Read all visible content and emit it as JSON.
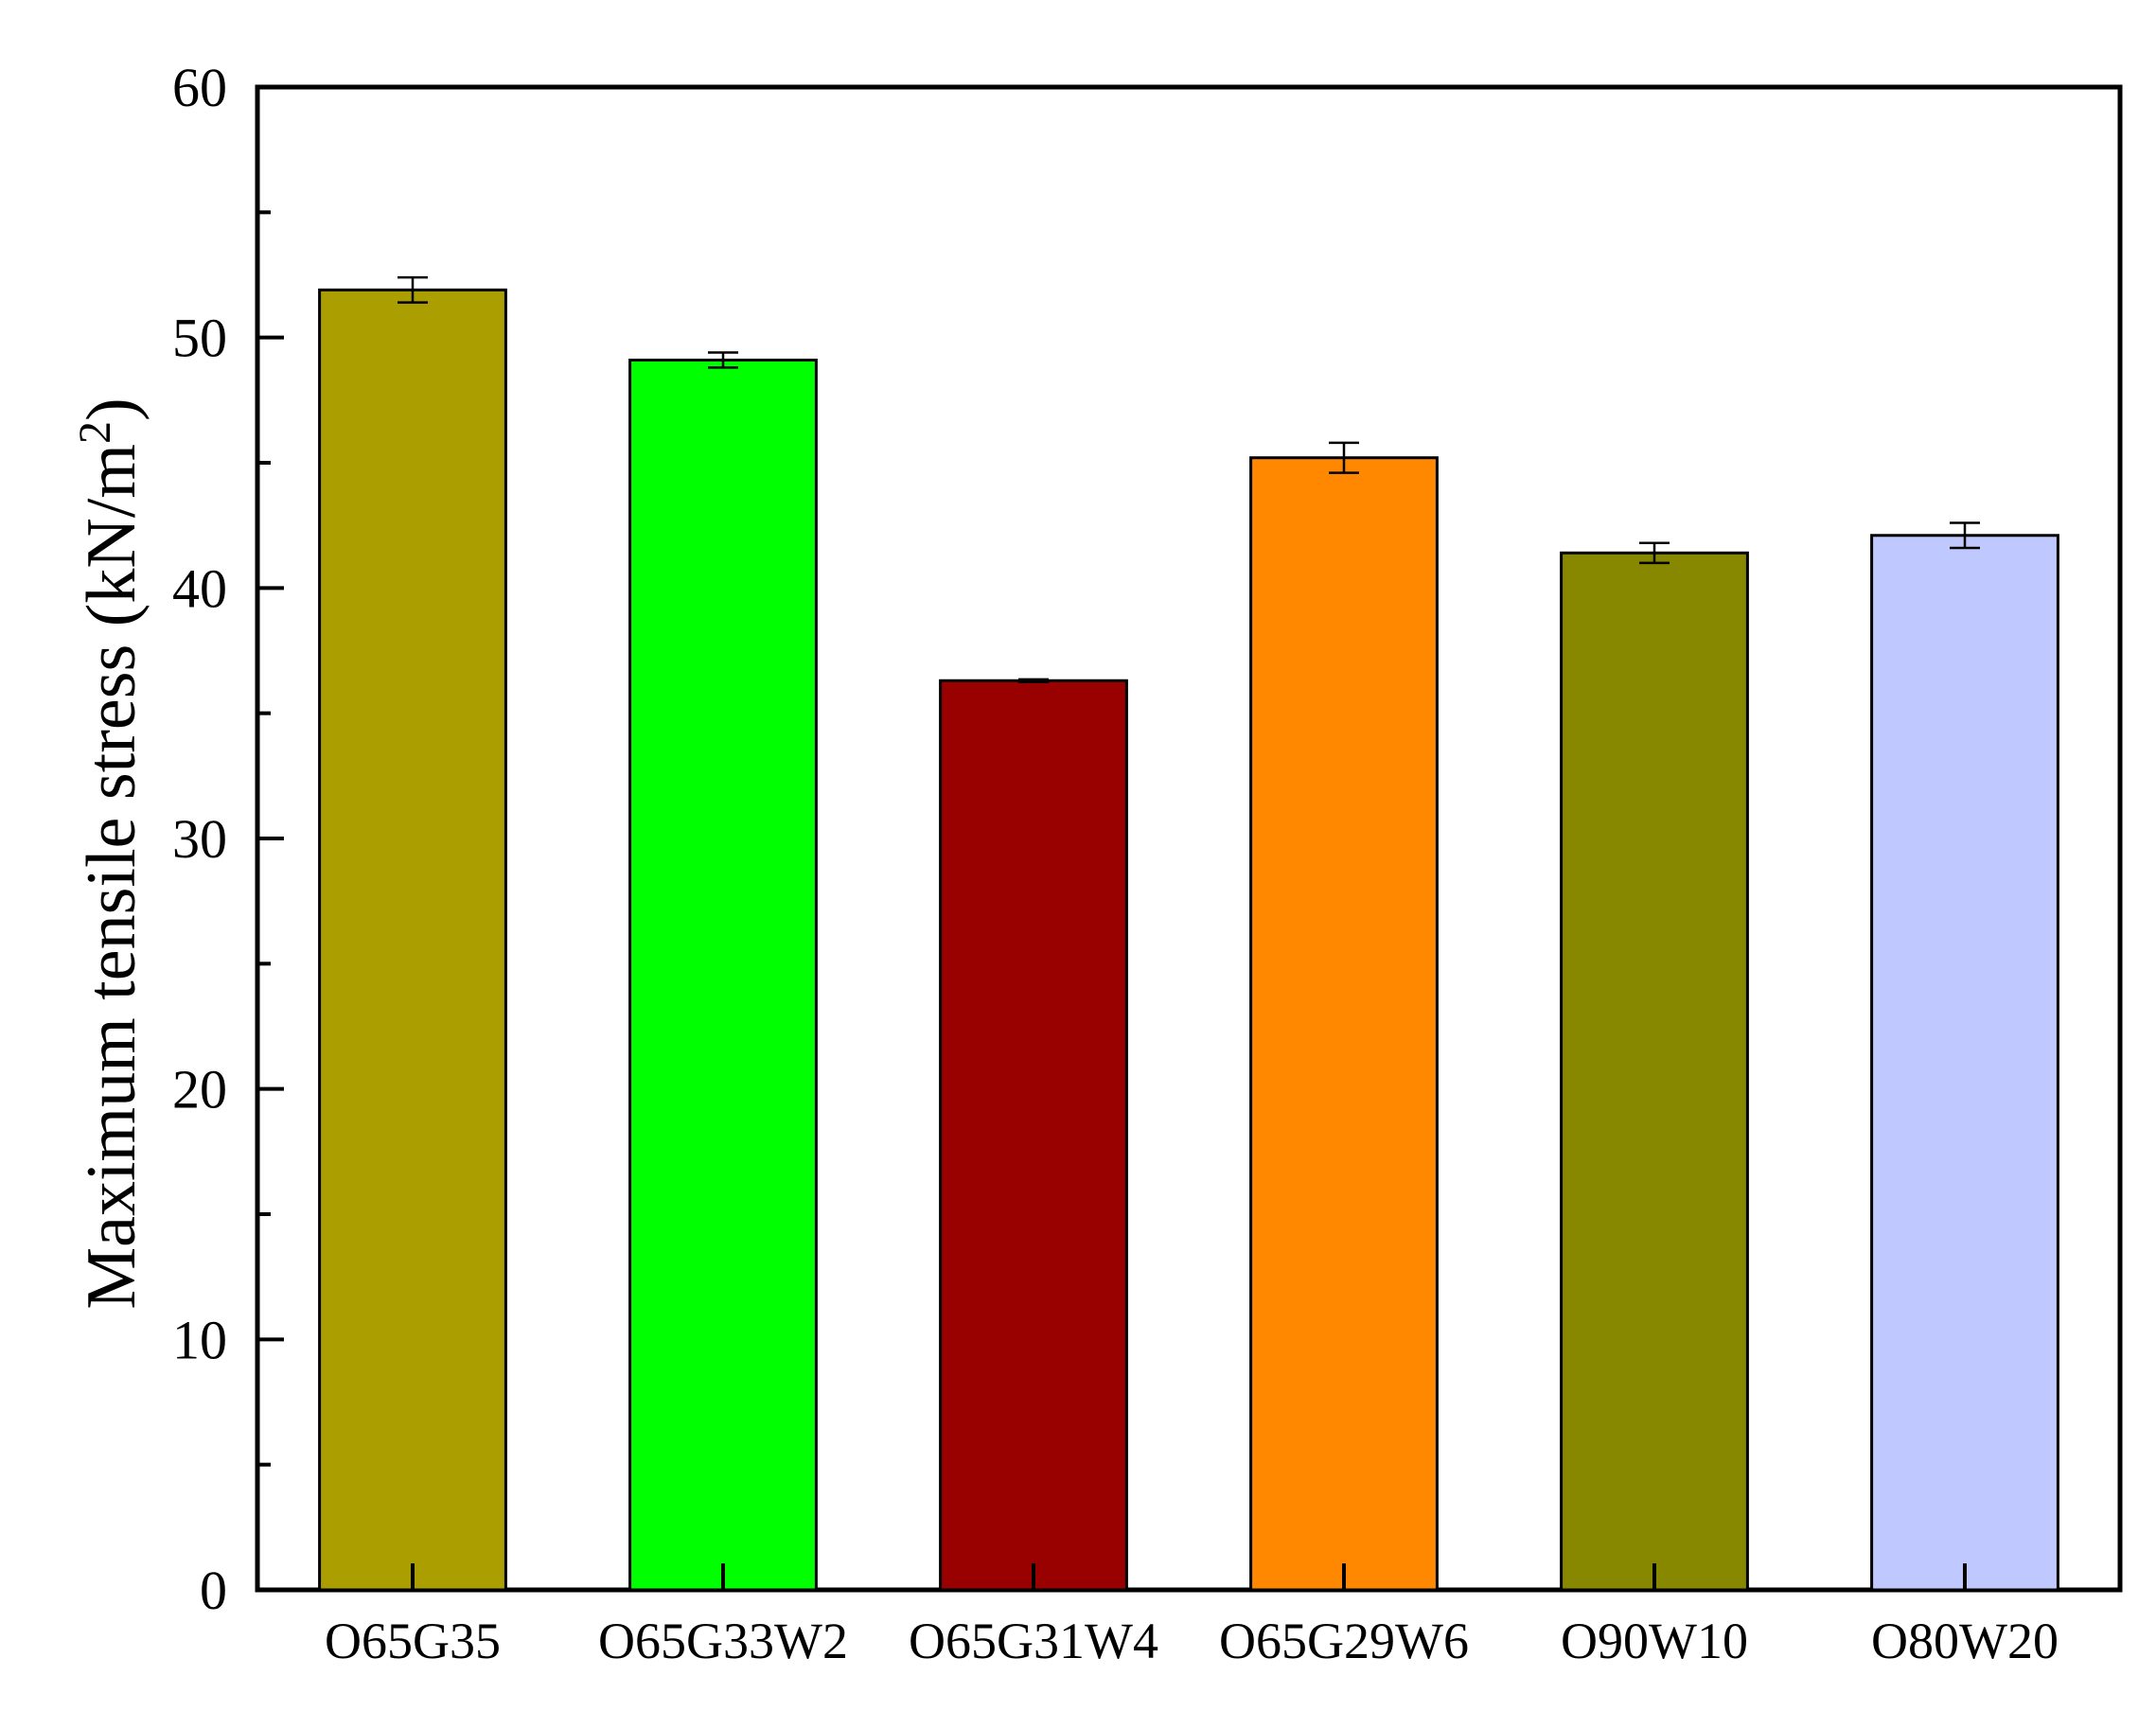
{
  "chart_data": {
    "type": "bar",
    "categories": [
      "O65G35",
      "O65G33W2",
      "O65G31W4",
      "O65G29W6",
      "O90W10",
      "O80W20"
    ],
    "values": [
      51.9,
      49.1,
      36.3,
      45.2,
      41.4,
      42.1
    ],
    "errors": [
      0.5,
      0.3,
      0.05,
      0.6,
      0.4,
      0.5
    ],
    "colors": [
      "#AA9E00",
      "#00FF00",
      "#990000",
      "#FF8800",
      "#888800",
      "#BFC8FF"
    ],
    "ylabel_main": "Maximum tensile stress (kN/m",
    "ylabel_sup": "2",
    "ylabel_close": ")",
    "xlabel": "",
    "ylim": [
      0,
      60
    ],
    "major_ticks": [
      0,
      10,
      20,
      30,
      40,
      50,
      60
    ],
    "minor_step": 5,
    "grid": false,
    "legend": "none"
  }
}
